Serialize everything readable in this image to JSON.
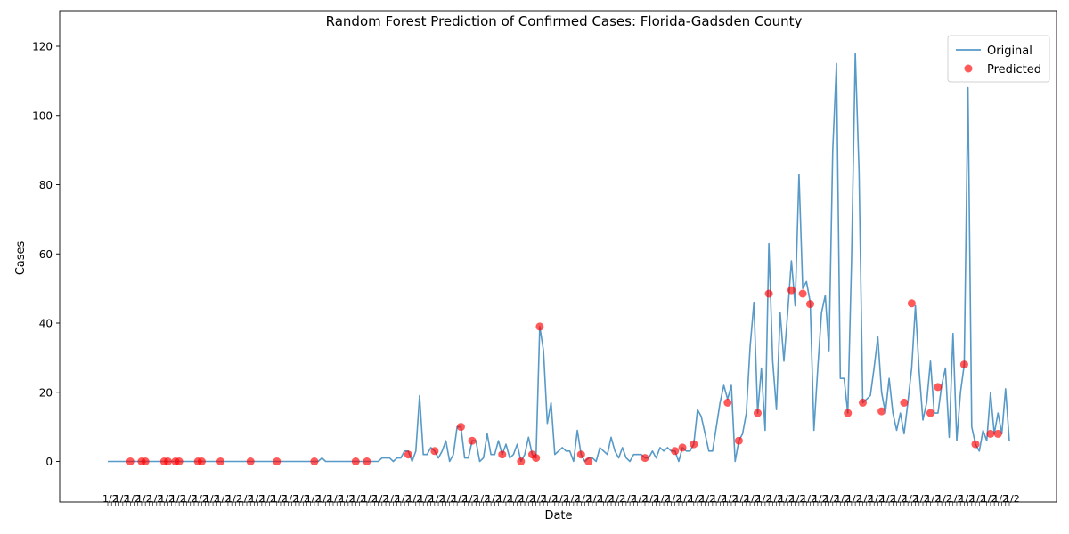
{
  "chart_data": {
    "type": "line",
    "title": "Random Forest Prediction of Confirmed Cases: Florida-Gadsden County",
    "xlabel": "Date",
    "ylabel": "Cases",
    "ylim": [
      -6,
      124
    ],
    "y_ticks": [
      0,
      20,
      40,
      60,
      80,
      100,
      120
    ],
    "x_tick_labels_note": "x tick labels are dense and overlapping (one per date), rendered illegible",
    "legend": {
      "position": "top-right",
      "entries": [
        "Original",
        "Predicted"
      ]
    },
    "colors": {
      "original": "#1f77b4",
      "predicted": "#ff0000"
    },
    "grid": false,
    "series": [
      {
        "name": "Original",
        "values": [
          0,
          0,
          0,
          0,
          0,
          0,
          0,
          0,
          0,
          0,
          0,
          0,
          0,
          0,
          0,
          0,
          0,
          0,
          0,
          0,
          0,
          0,
          0,
          0,
          0,
          0,
          0,
          0,
          0,
          0,
          0,
          0,
          0,
          0,
          0,
          0,
          0,
          0,
          0,
          0,
          0,
          0,
          0,
          0,
          0,
          0,
          0,
          0,
          0,
          0,
          0,
          0,
          0,
          0,
          0,
          0,
          0,
          1,
          0,
          0,
          0,
          0,
          0,
          0,
          0,
          0,
          0,
          0,
          0,
          0,
          0,
          0,
          0,
          1,
          1,
          1,
          0,
          1,
          1,
          3,
          3,
          0,
          3,
          19,
          2,
          2,
          4,
          3,
          1,
          3,
          6,
          0,
          2,
          10,
          10,
          1,
          1,
          6,
          6,
          0,
          1,
          8,
          2,
          2,
          6,
          2,
          5,
          1,
          2,
          5,
          0,
          2,
          7,
          2,
          1,
          39,
          32,
          11,
          17,
          2,
          3,
          4,
          3,
          3,
          0,
          9,
          2,
          0,
          1,
          1,
          0,
          4,
          3,
          2,
          7,
          3,
          1,
          4,
          1,
          0,
          2,
          2,
          2,
          1,
          1,
          3,
          1,
          4,
          3,
          4,
          3,
          3,
          0,
          4,
          3,
          3,
          5,
          15,
          13,
          8,
          3,
          3,
          10,
          17,
          22,
          18,
          22,
          0,
          6,
          8,
          14,
          33,
          46,
          14,
          27,
          9,
          63,
          29,
          15,
          43,
          29,
          43,
          58,
          45,
          83,
          50,
          52,
          46,
          9,
          27,
          43,
          48,
          32,
          90,
          115,
          24,
          24,
          14,
          58,
          118,
          84,
          17,
          18,
          19,
          27,
          36,
          20,
          14,
          24,
          14,
          9,
          14,
          8,
          17,
          27,
          45,
          26,
          12,
          17,
          29,
          14,
          14,
          22,
          27,
          7,
          37,
          6,
          20,
          28,
          108,
          10,
          5,
          3,
          9,
          6,
          20,
          8,
          14,
          8,
          21,
          6
        ]
      },
      {
        "name": "Predicted",
        "points": [
          [
            6,
            0
          ],
          [
            9,
            0
          ],
          [
            10,
            0
          ],
          [
            15,
            0
          ],
          [
            16,
            0
          ],
          [
            18,
            0
          ],
          [
            19,
            0
          ],
          [
            24,
            0
          ],
          [
            25,
            0
          ],
          [
            30,
            0
          ],
          [
            38,
            0
          ],
          [
            45,
            0
          ],
          [
            55,
            0
          ],
          [
            66,
            0
          ],
          [
            69,
            0
          ],
          [
            80,
            2
          ],
          [
            87,
            3
          ],
          [
            94,
            10
          ],
          [
            97,
            6
          ],
          [
            105,
            2
          ],
          [
            110,
            0
          ],
          [
            113,
            2
          ],
          [
            114,
            1
          ],
          [
            115,
            39
          ],
          [
            126,
            2
          ],
          [
            128,
            0
          ],
          [
            143,
            1
          ],
          [
            151,
            3
          ],
          [
            153,
            4
          ],
          [
            156,
            5
          ],
          [
            165,
            17
          ],
          [
            168,
            6
          ],
          [
            173,
            14
          ],
          [
            176,
            48.5
          ],
          [
            182,
            49.5
          ],
          [
            185,
            48.5
          ],
          [
            187,
            45.5
          ],
          [
            197,
            14
          ],
          [
            201,
            17
          ],
          [
            206,
            14.5
          ],
          [
            212,
            17
          ],
          [
            214,
            45.7
          ],
          [
            219,
            14
          ],
          [
            221,
            21.5
          ],
          [
            228,
            28
          ],
          [
            231,
            5
          ],
          [
            235,
            8
          ],
          [
            237,
            8
          ]
        ]
      }
    ]
  }
}
